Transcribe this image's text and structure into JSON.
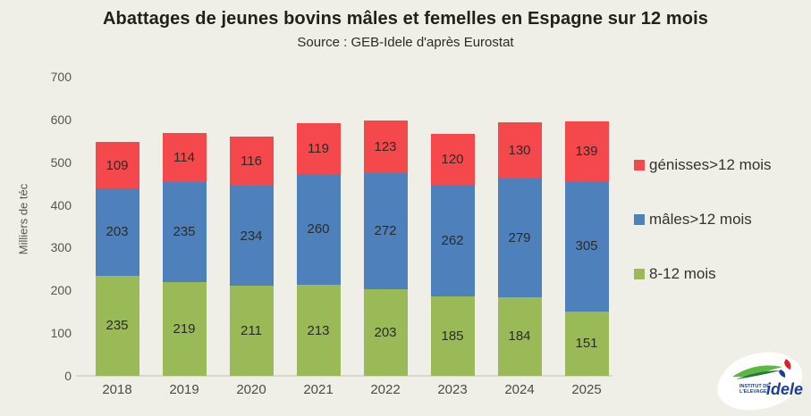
{
  "chart_data": {
    "type": "bar",
    "stacked": true,
    "title": "Abattages de jeunes bovins mâles et femelles en Espagne sur 12 mois",
    "subtitle": "Source : GEB-Idele d'après Eurostat",
    "ylabel": "Milliers de téc",
    "xlabel": "",
    "categories": [
      "2018",
      "2019",
      "2020",
      "2021",
      "2022",
      "2023",
      "2024",
      "2025"
    ],
    "series": [
      {
        "name": "8-12 mois",
        "color": "#9ab957",
        "values": [
          235,
          219,
          211,
          213,
          203,
          185,
          184,
          151
        ]
      },
      {
        "name": "mâles>12 mois",
        "color": "#4e81bc",
        "values": [
          203,
          235,
          234,
          260,
          272,
          262,
          279,
          305
        ]
      },
      {
        "name": "génisses>12 mois",
        "color": "#f4484c",
        "values": [
          109,
          114,
          116,
          119,
          123,
          120,
          130,
          139
        ]
      }
    ],
    "ylim": [
      0,
      700
    ],
    "yticks": [
      0,
      100,
      200,
      300,
      400,
      500,
      600,
      700
    ],
    "grid": false,
    "legend_position": "right",
    "legend_order_top_to_bottom": [
      "génisses>12 mois",
      "mâles>12 mois",
      "8-12 mois"
    ],
    "data_labels": true
  },
  "colors": {
    "background": "#f0efe7",
    "axis_text": "#55554f",
    "title_text": "#21211c",
    "baseline": "#d9d8d0"
  },
  "logo": {
    "brand": "idele",
    "institute_line1": "INSTITUT DE",
    "institute_line2": "L'ELEVAGE"
  }
}
